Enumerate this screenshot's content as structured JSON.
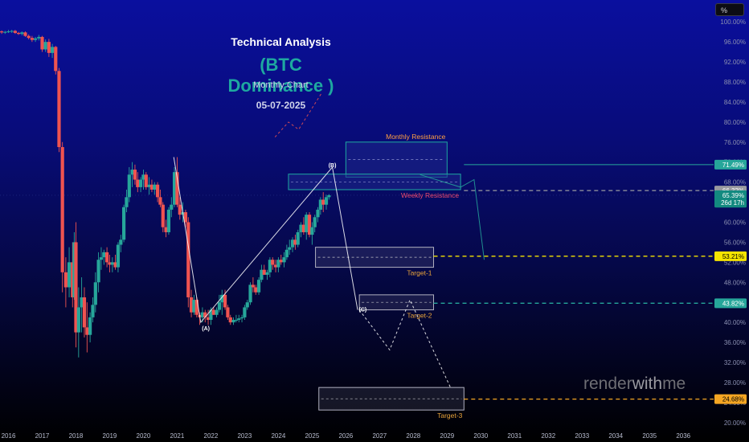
{
  "header": {
    "title": "Technical Analysis",
    "subtitle": "(BTC Dominance )",
    "timeframe": "Monthly Chart",
    "date": "05-07-2025"
  },
  "toolbar": {
    "unit_label": "%"
  },
  "watermark": {
    "part1": "render",
    "part2": "with",
    "part3": "me"
  },
  "colors": {
    "up": "#26a69a",
    "down": "#ef5350",
    "accent": "#1ea8a0",
    "target_line": "#f5e400",
    "target3_line": "#f5a623",
    "resistance_label": "#ff9f43",
    "weekly_label": "#ef4b6c"
  },
  "chart_data": {
    "type": "candlestick",
    "title": "Technical Analysis",
    "subtitle": "(BTC Dominance )",
    "ylim": [
      19.0,
      101.0
    ],
    "yticks": [
      "100.00%",
      "96.00%",
      "92.00%",
      "88.00%",
      "84.00%",
      "80.00%",
      "76.00%",
      "72.00%",
      "68.00%",
      "64.00%",
      "60.00%",
      "56.00%",
      "52.00%",
      "48.00%",
      "44.00%",
      "40.00%",
      "36.00%",
      "32.00%",
      "28.00%",
      "24.00%",
      "20.00%"
    ],
    "ytick_values": [
      100,
      96,
      92,
      88,
      84,
      80,
      76,
      72,
      68,
      64,
      60,
      56,
      52,
      48,
      44,
      40,
      36,
      32,
      28,
      24,
      20
    ],
    "xticks": [
      "2016",
      "2017",
      "2018",
      "2019",
      "2020",
      "2021",
      "2022",
      "2023",
      "2024",
      "2025",
      "2026",
      "2027",
      "2028",
      "2029",
      "2030",
      "2031",
      "2032",
      "2033",
      "2034",
      "2035",
      "2036"
    ],
    "xtick_values": [
      2016,
      2017,
      2018,
      2019,
      2020,
      2021,
      2022,
      2023,
      2024,
      2025,
      2026,
      2027,
      2028,
      2029,
      2030,
      2031,
      2032,
      2033,
      2034,
      2035,
      2036
    ],
    "xlim": [
      2015.75,
      2036.9
    ],
    "price_labels": [
      {
        "text": "71.49%",
        "value": 71.49,
        "bg": "#26a69a",
        "color": "#ffffff"
      },
      {
        "text": "66.32%",
        "value": 66.32,
        "bg": "#9a9aa0",
        "color": "#ffffff"
      },
      {
        "text": "65.39%",
        "value": 65.39,
        "bg": "#138a80",
        "color": "#ffffff"
      },
      {
        "text": "26d 17h",
        "value": 63.9,
        "bg": "#138a80",
        "color": "#ffffff"
      },
      {
        "text": "53.21%",
        "value": 53.21,
        "bg": "#f5e400",
        "color": "#000000"
      },
      {
        "text": "43.82%",
        "value": 43.82,
        "bg": "#26a69a",
        "color": "#ffffff"
      },
      {
        "text": "24.68%",
        "value": 24.68,
        "bg": "#f5a623",
        "color": "#000000"
      }
    ],
    "zones": [
      {
        "name": "Monthly Resistance",
        "x0": 2026.0,
        "x1": 2029.0,
        "y0": 69.0,
        "y1": 76.0,
        "label": "Monthly Resistance",
        "label_pos": "top-right",
        "label_color": "#ff9f43"
      },
      {
        "name": "Weekly Resistance",
        "x0": 2024.3,
        "x1": 2029.4,
        "y0": 66.5,
        "y1": 69.6,
        "label": "Weekly Resistance",
        "label_pos": "bottom-right",
        "label_color": "#ef4b6c"
      },
      {
        "name": "Target-1",
        "x0": 2025.1,
        "x1": 2028.6,
        "y0": 51.0,
        "y1": 55.0,
        "label": "Target-1",
        "label_pos": "bottom-right",
        "label_color": "#e8a33a"
      },
      {
        "name": "Target-2",
        "x0": 2026.4,
        "x1": 2028.6,
        "y0": 42.5,
        "y1": 45.5,
        "label": "Target-2",
        "label_pos": "bottom-right",
        "label_color": "#e8a33a"
      },
      {
        "name": "Target-3",
        "x0": 2025.2,
        "x1": 2029.5,
        "y0": 22.5,
        "y1": 27.0,
        "label": "Target-3",
        "label_pos": "bottom-right",
        "label_color": "#e8a33a"
      }
    ],
    "hlines": [
      {
        "value": 71.49,
        "color": "#26a69a",
        "style": "solid",
        "x0": 2029.5
      },
      {
        "value": 66.32,
        "color": "#9a9aa0",
        "style": "dashed",
        "x0": 2029.5
      },
      {
        "value": 53.21,
        "color": "#f5e400",
        "style": "dashed",
        "x0": 2028.6
      },
      {
        "value": 43.82,
        "color": "#26a69a",
        "style": "dashed",
        "x0": 2028.6
      },
      {
        "value": 24.68,
        "color": "#f5a623",
        "style": "dashed",
        "x0": 2029.5
      }
    ],
    "wave_labels": [
      {
        "text": "(A)",
        "x": 2021.85,
        "y": 38.4
      },
      {
        "text": "(B)",
        "x": 2025.6,
        "y": 71.0
      },
      {
        "text": "(C)",
        "x": 2026.5,
        "y": 42.2
      }
    ],
    "wave_lines": [
      {
        "points": [
          [
            2020.9,
            73.0
          ],
          [
            2021.7,
            40.0
          ],
          [
            2025.6,
            71.0
          ],
          [
            2026.35,
            42.5
          ]
        ],
        "color": "#ffffff",
        "dash": ""
      },
      {
        "points": [
          [
            2028.2,
            69.5
          ],
          [
            2029.4,
            67.0
          ],
          [
            2029.8,
            68.5
          ],
          [
            2030.1,
            52.5
          ]
        ],
        "color": "#26a69a",
        "dash": ""
      },
      {
        "points": [
          [
            2026.4,
            42.5
          ],
          [
            2027.3,
            34.5
          ],
          [
            2027.9,
            44.5
          ],
          [
            2029.1,
            27.0
          ]
        ],
        "color": "#ffffff",
        "dash": "3,3"
      },
      {
        "points": [
          [
            2023.9,
            77.0
          ],
          [
            2024.3,
            80.0
          ],
          [
            2024.6,
            78.5
          ],
          [
            2025.3,
            86.0
          ]
        ],
        "color": "#ef5350",
        "dash": "3,3"
      }
    ],
    "candles": [
      [
        2015.8,
        98.1,
        98.3,
        97.6,
        97.9
      ],
      [
        2015.9,
        97.9,
        98.2,
        97.6,
        98.0
      ],
      [
        2016.0,
        98.0,
        98.4,
        97.8,
        98.1
      ],
      [
        2016.1,
        98.1,
        98.4,
        97.8,
        98.2
      ],
      [
        2016.2,
        98.2,
        98.4,
        97.6,
        97.8
      ],
      [
        2016.3,
        97.8,
        98.0,
        97.4,
        97.6
      ],
      [
        2016.4,
        97.6,
        98.1,
        97.3,
        97.9
      ],
      [
        2016.5,
        97.9,
        98.1,
        97.0,
        97.2
      ],
      [
        2016.6,
        97.2,
        97.5,
        96.5,
        96.8
      ],
      [
        2016.7,
        96.8,
        97.2,
        96.0,
        96.4
      ],
      [
        2016.8,
        96.4,
        97.0,
        96.0,
        96.7
      ],
      [
        2016.9,
        96.7,
        97.4,
        96.3,
        97.0
      ],
      [
        2017.0,
        97.0,
        97.2,
        94.0,
        94.5
      ],
      [
        2017.1,
        94.5,
        96.5,
        94.0,
        96.0
      ],
      [
        2017.2,
        96.0,
        96.6,
        93.0,
        93.8
      ],
      [
        2017.3,
        93.8,
        95.6,
        92.8,
        95.0
      ],
      [
        2017.4,
        95.0,
        95.2,
        89.5,
        90.2
      ],
      [
        2017.5,
        90.2,
        90.8,
        74.0,
        75.0
      ],
      [
        2017.6,
        75.0,
        76.0,
        46.0,
        50.0
      ],
      [
        2017.7,
        50.0,
        53.0,
        43.0,
        47.0
      ],
      [
        2017.8,
        47.0,
        55.0,
        45.0,
        52.0
      ],
      [
        2017.9,
        52.0,
        56.0,
        43.0,
        45.0
      ],
      [
        2017.95,
        45.0,
        58.0,
        44.5,
        56.0
      ],
      [
        2018.0,
        56.0,
        60.0,
        35.0,
        38.0
      ],
      [
        2018.08,
        38.0,
        47.0,
        33.0,
        43.0
      ],
      [
        2018.17,
        43.0,
        49.0,
        38.0,
        45.0
      ],
      [
        2018.25,
        45.0,
        47.0,
        37.0,
        39.0
      ],
      [
        2018.33,
        39.0,
        44.0,
        34.0,
        37.5
      ],
      [
        2018.42,
        37.5,
        42.0,
        36.0,
        41.0
      ],
      [
        2018.5,
        41.0,
        45.0,
        40.0,
        43.5
      ],
      [
        2018.58,
        43.5,
        50.0,
        42.0,
        48.0
      ],
      [
        2018.67,
        48.0,
        54.0,
        46.0,
        52.5
      ],
      [
        2018.75,
        52.5,
        55.0,
        50.5,
        53.0
      ],
      [
        2018.83,
        53.0,
        54.5,
        51.5,
        54.0
      ],
      [
        2018.92,
        54.0,
        55.0,
        51.0,
        52.0
      ],
      [
        2019.0,
        52.0,
        53.5,
        50.0,
        51.5
      ],
      [
        2019.08,
        51.5,
        53.0,
        50.0,
        52.0
      ],
      [
        2019.17,
        52.0,
        53.5,
        50.5,
        51.0
      ],
      [
        2019.25,
        51.0,
        56.0,
        50.0,
        55.5
      ],
      [
        2019.33,
        55.5,
        57.5,
        54.0,
        56.5
      ],
      [
        2019.42,
        56.5,
        63.5,
        56.0,
        63.0
      ],
      [
        2019.5,
        63.0,
        66.5,
        62.0,
        65.0
      ],
      [
        2019.58,
        65.0,
        71.0,
        64.0,
        69.5
      ],
      [
        2019.67,
        69.5,
        72.0,
        67.0,
        70.5
      ],
      [
        2019.75,
        70.5,
        71.5,
        67.5,
        68.5
      ],
      [
        2019.83,
        68.5,
        70.0,
        66.0,
        67.0
      ],
      [
        2019.92,
        67.0,
        69.0,
        66.0,
        68.5
      ],
      [
        2020.0,
        68.5,
        70.5,
        66.5,
        69.5
      ],
      [
        2020.08,
        69.5,
        70.0,
        66.5,
        67.0
      ],
      [
        2020.17,
        67.0,
        69.0,
        65.5,
        67.5
      ],
      [
        2020.25,
        67.5,
        68.5,
        66.0,
        66.5
      ],
      [
        2020.33,
        66.5,
        68.0,
        65.5,
        67.5
      ],
      [
        2020.42,
        67.5,
        68.0,
        64.0,
        65.0
      ],
      [
        2020.5,
        65.0,
        66.5,
        63.0,
        63.5
      ],
      [
        2020.58,
        63.5,
        64.0,
        58.0,
        59.0
      ],
      [
        2020.67,
        59.0,
        60.5,
        57.0,
        58.0
      ],
      [
        2020.75,
        58.0,
        63.0,
        57.5,
        62.5
      ],
      [
        2020.83,
        62.5,
        65.0,
        61.0,
        63.5
      ],
      [
        2020.92,
        63.5,
        71.0,
        63.0,
        70.0
      ],
      [
        2021.0,
        70.0,
        73.0,
        63.0,
        63.5
      ],
      [
        2021.08,
        63.5,
        65.0,
        60.5,
        61.5
      ],
      [
        2021.17,
        61.5,
        64.0,
        60.0,
        62.0
      ],
      [
        2021.25,
        62.0,
        62.5,
        59.0,
        60.0
      ],
      [
        2021.33,
        60.0,
        61.0,
        43.0,
        45.0
      ],
      [
        2021.42,
        45.0,
        46.5,
        41.0,
        42.0
      ],
      [
        2021.5,
        42.0,
        45.5,
        41.5,
        44.5
      ],
      [
        2021.58,
        44.5,
        45.0,
        41.0,
        41.5
      ],
      [
        2021.67,
        41.5,
        42.0,
        39.5,
        41.0
      ],
      [
        2021.75,
        41.0,
        43.0,
        40.0,
        42.0
      ],
      [
        2021.83,
        42.0,
        42.5,
        40.0,
        41.0
      ],
      [
        2021.92,
        41.0,
        42.5,
        39.5,
        40.5
      ],
      [
        2022.0,
        40.5,
        43.0,
        39.5,
        42.5
      ],
      [
        2022.08,
        42.5,
        43.0,
        41.5,
        41.5
      ],
      [
        2022.17,
        41.5,
        43.0,
        41.0,
        42.5
      ],
      [
        2022.25,
        42.5,
        45.5,
        42.0,
        44.0
      ],
      [
        2022.33,
        44.0,
        46.5,
        41.5,
        45.5
      ],
      [
        2022.42,
        45.5,
        46.5,
        42.5,
        43.0
      ],
      [
        2022.5,
        43.0,
        43.5,
        40.5,
        41.0
      ],
      [
        2022.58,
        41.0,
        41.5,
        39.5,
        40.0
      ],
      [
        2022.67,
        40.0,
        41.0,
        39.5,
        40.5
      ],
      [
        2022.75,
        40.5,
        41.5,
        40.0,
        40.5
      ],
      [
        2022.83,
        40.5,
        41.5,
        40.0,
        40.8
      ],
      [
        2022.92,
        40.8,
        41.5,
        40.0,
        41.0
      ],
      [
        2023.0,
        41.0,
        43.5,
        40.5,
        43.0
      ],
      [
        2023.08,
        43.0,
        44.5,
        42.5,
        44.0
      ],
      [
        2023.17,
        44.0,
        48.0,
        43.5,
        47.5
      ],
      [
        2023.25,
        47.5,
        49.0,
        46.0,
        47.0
      ],
      [
        2023.33,
        47.0,
        47.5,
        45.5,
        46.0
      ],
      [
        2023.42,
        46.0,
        49.0,
        45.5,
        48.5
      ],
      [
        2023.5,
        48.5,
        51.5,
        48.0,
        50.5
      ],
      [
        2023.58,
        50.5,
        51.5,
        49.5,
        49.5
      ],
      [
        2023.67,
        49.5,
        50.5,
        48.5,
        50.0
      ],
      [
        2023.75,
        50.0,
        53.0,
        49.0,
        52.5
      ],
      [
        2023.83,
        52.5,
        53.0,
        50.5,
        51.5
      ],
      [
        2023.92,
        51.5,
        52.5,
        50.0,
        51.0
      ],
      [
        2024.0,
        51.0,
        53.0,
        50.0,
        52.5
      ],
      [
        2024.08,
        52.5,
        53.5,
        51.5,
        52.0
      ],
      [
        2024.17,
        52.0,
        54.0,
        51.0,
        53.0
      ],
      [
        2024.25,
        53.0,
        55.5,
        52.5,
        54.5
      ],
      [
        2024.33,
        54.5,
        56.5,
        53.5,
        55.0
      ],
      [
        2024.42,
        55.0,
        57.0,
        54.0,
        56.5
      ],
      [
        2024.5,
        56.5,
        57.5,
        54.5,
        55.5
      ],
      [
        2024.58,
        55.5,
        58.5,
        55.0,
        58.0
      ],
      [
        2024.67,
        58.0,
        60.0,
        57.0,
        59.5
      ],
      [
        2024.75,
        59.5,
        61.0,
        57.5,
        58.0
      ],
      [
        2024.83,
        58.0,
        62.0,
        56.5,
        61.5
      ],
      [
        2024.92,
        61.5,
        62.0,
        57.0,
        57.5
      ],
      [
        2025.0,
        57.5,
        60.0,
        55.5,
        59.0
      ],
      [
        2025.08,
        59.0,
        61.5,
        58.0,
        61.0
      ],
      [
        2025.17,
        61.0,
        63.0,
        60.0,
        62.5
      ],
      [
        2025.25,
        62.5,
        65.0,
        61.5,
        64.5
      ],
      [
        2025.33,
        64.5,
        66.0,
        62.0,
        63.5
      ],
      [
        2025.42,
        63.5,
        65.5,
        62.5,
        65.0
      ],
      [
        2025.5,
        65.0,
        65.6,
        64.5,
        65.39
      ]
    ]
  }
}
